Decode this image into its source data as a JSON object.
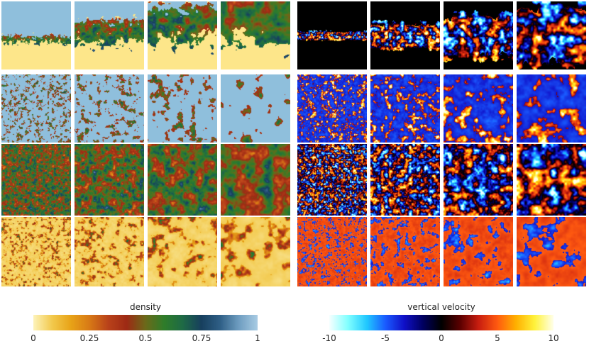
{
  "figure": {
    "colors": {
      "density_stops": [
        "#fdf3b8",
        "#f2c94c",
        "#e8a317",
        "#d87a16",
        "#b9421a",
        "#9e2a14",
        "#6b6a1a",
        "#2f7d2a",
        "#1e6a46",
        "#173f5e",
        "#2f5f86",
        "#6e9dc0",
        "#a8cbe3"
      ],
      "velocity_stops": [
        "#f4ffff",
        "#7fffff",
        "#20c8ff",
        "#1a5bff",
        "#1010c8",
        "#000060",
        "#000000",
        "#5a0000",
        "#c81e10",
        "#ff5a10",
        "#ffb000",
        "#fff23a",
        "#ffffe8"
      ],
      "density_light_bg": "#8fbfdc",
      "density_dark_bg": "#fde68a"
    },
    "density_colorbar": {
      "title": "density",
      "tick_labels": [
        "0",
        "0.25",
        "0.5",
        "0.75",
        "1"
      ]
    },
    "velocity_colorbar": {
      "title": "vertical velocity",
      "tick_labels": [
        "-10",
        "-5",
        "0",
        "5",
        "10"
      ]
    }
  }
}
